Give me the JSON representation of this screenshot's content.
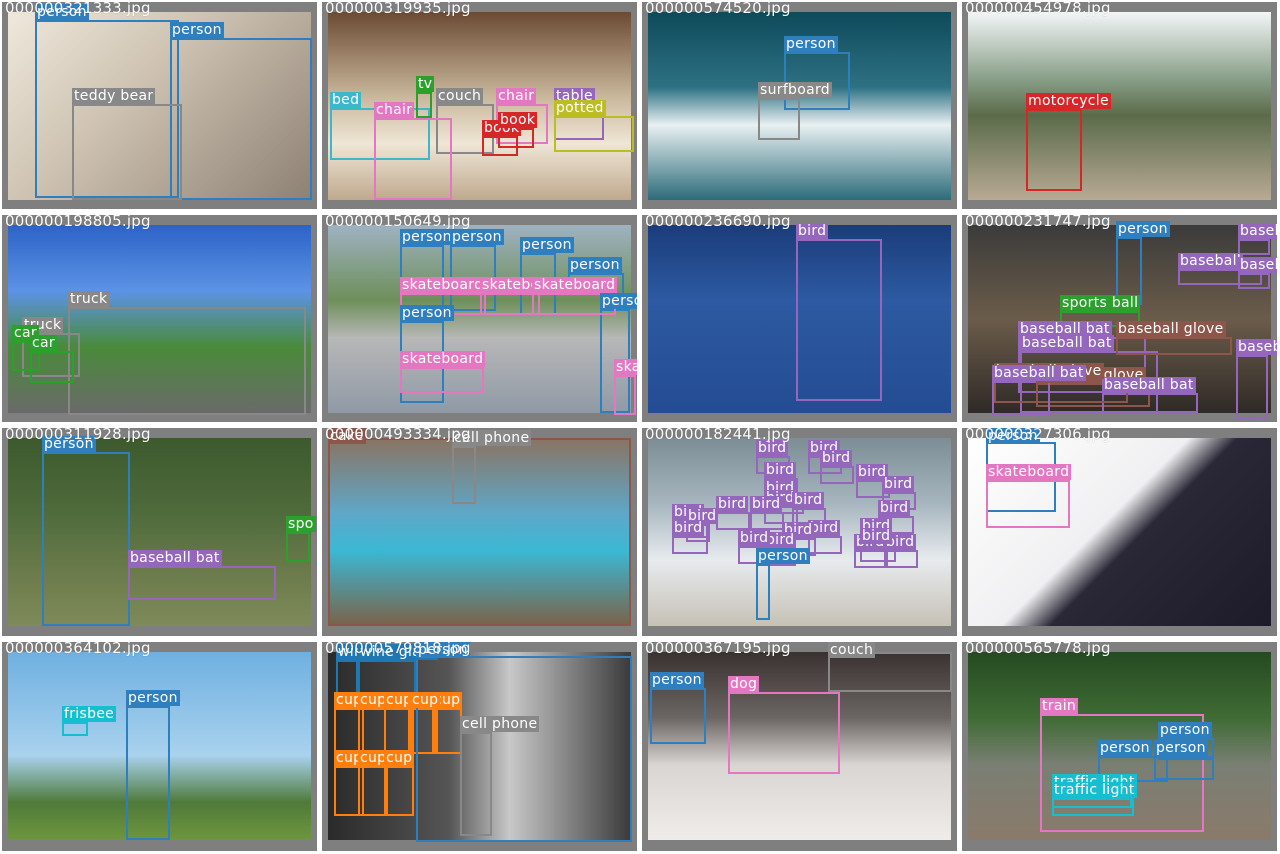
{
  "colors": {
    "person": "#2f7fbf",
    "bed": "#3cb8c8",
    "couch": "#888888",
    "chair": "#e377c2",
    "tv": "#2ca02c",
    "book": "#d62728",
    "potted_plant": "#bcbd22",
    "dining_table": "#9467bd",
    "teddy_bear": "#888888",
    "surfboard": "#888888",
    "motorcycle": "#d62728",
    "truck": "#888888",
    "car": "#2ca02c",
    "skateboard": "#e377c2",
    "bird": "#9467bd",
    "sports_ball": "#2ca02c",
    "baseball_bat": "#9467bd",
    "baseball_glove": "#8c564b",
    "cake": "#8c564b",
    "cell_phone": "#888888",
    "frisbee": "#17becf",
    "cup": "#ff7f0e",
    "wine_glass": "#1f77b4",
    "dog": "#e377c2",
    "train": "#e377c2",
    "traffic_light": "#17becf"
  },
  "tiles": [
    {
      "filename": "000000321333.jpg",
      "labels": [
        "person",
        "person",
        "teddy bear"
      ]
    },
    {
      "filename": "000000319935.jpg",
      "labels": [
        "bed",
        "tv",
        "couch",
        "chair",
        "chair",
        "table",
        "potted",
        "book",
        "book"
      ]
    },
    {
      "filename": "000000574520.jpg",
      "labels": [
        "person",
        "surfboard"
      ]
    },
    {
      "filename": "000000454978.jpg",
      "labels": [
        "motorcycle"
      ]
    },
    {
      "filename": "000000198805.jpg",
      "labels": [
        "truck",
        "truck",
        "car",
        "car"
      ]
    },
    {
      "filename": "000000150649.jpg",
      "labels": [
        "person",
        "person",
        "person",
        "person",
        "person",
        "person",
        "skateboard",
        "skateboard",
        "skateboard",
        "skateboard",
        "skateboard"
      ]
    },
    {
      "filename": "000000236690.jpg",
      "labels": [
        "bird"
      ]
    },
    {
      "filename": "000000231747.jpg",
      "labels": [
        "person",
        "baseball",
        "baseball",
        "baseball",
        "sports ball",
        "baseball bat",
        "baseball bat",
        "baseball glove",
        "baseball glove",
        "baseball",
        "baseball bat",
        "baseball glove",
        "baseball bat"
      ]
    },
    {
      "filename": "000000311928.jpg",
      "labels": [
        "person",
        "baseball bat",
        "spo"
      ]
    },
    {
      "filename": "000000493334.jpg",
      "labels": [
        "cake",
        "cell phone"
      ]
    },
    {
      "filename": "000000182441.jpg",
      "labels": [
        "bird",
        "bird",
        "bird",
        "bird",
        "bird",
        "bird",
        "bird",
        "bird",
        "bird",
        "bird",
        "bird",
        "bird",
        "bird",
        "bird",
        "bird",
        "bird",
        "bird",
        "bird",
        "bird",
        "bird",
        "bird",
        "bird",
        "bird",
        "person"
      ]
    },
    {
      "filename": "000000327306.jpg",
      "labels": [
        "person",
        "skateboard"
      ]
    },
    {
      "filename": "000000364102.jpg",
      "labels": [
        "frisbee",
        "person"
      ]
    },
    {
      "filename": "000000579818.jpg",
      "labels": [
        "wine",
        "wine glass",
        "cup",
        "cup",
        "cup",
        "cup",
        "cup",
        "cup",
        "cup",
        "cup",
        "cup",
        "cell phone",
        "person"
      ]
    },
    {
      "filename": "000000367195.jpg",
      "labels": [
        "person",
        "dog",
        "couch"
      ]
    },
    {
      "filename": "000000565778.jpg",
      "labels": [
        "train",
        "person",
        "person",
        "person",
        "traffic light",
        "traffic light"
      ]
    }
  ]
}
